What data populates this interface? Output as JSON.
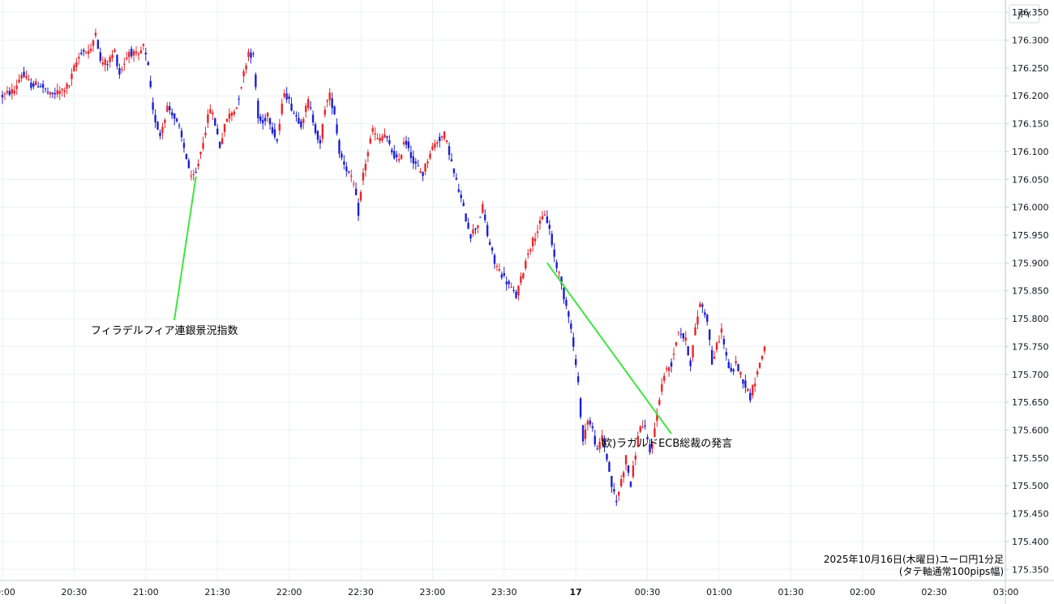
{
  "chart_data": {
    "type": "candlestick",
    "currency_label": "JPY",
    "caption_line1": "2025年10月16日(木曜日)ユーロ円1分足",
    "caption_line2": "(タテ軸通常100pips幅)",
    "y_ticks": [
      "176.350",
      "176.300",
      "176.250",
      "176.200",
      "176.150",
      "176.100",
      "176.050",
      "176.000",
      "175.950",
      "175.900",
      "175.850",
      "175.800",
      "175.750",
      "175.700",
      "175.650",
      "175.600",
      "175.550",
      "175.500",
      "175.450",
      "175.400",
      "175.350"
    ],
    "x_ticks": [
      {
        "label": "20:00",
        "bold": false
      },
      {
        "label": "20:30",
        "bold": false
      },
      {
        "label": "21:00",
        "bold": false
      },
      {
        "label": "21:30",
        "bold": false
      },
      {
        "label": "22:00",
        "bold": false
      },
      {
        "label": "22:30",
        "bold": false
      },
      {
        "label": "23:00",
        "bold": false
      },
      {
        "label": "23:30",
        "bold": false
      },
      {
        "label": "17",
        "bold": true
      },
      {
        "label": "00:30",
        "bold": false
      },
      {
        "label": "01:00",
        "bold": false
      },
      {
        "label": "01:30",
        "bold": false
      },
      {
        "label": "02:00",
        "bold": false
      },
      {
        "label": "02:30",
        "bold": false
      },
      {
        "label": "03:00",
        "bold": false
      }
    ],
    "ylim": [
      175.33,
      176.372
    ],
    "price_path": [
      [
        0,
        176.2
      ],
      [
        5,
        176.21
      ],
      [
        8,
        176.24
      ],
      [
        12,
        176.22
      ],
      [
        16,
        176.22
      ],
      [
        20,
        176.2
      ],
      [
        25,
        176.21
      ],
      [
        28,
        176.22
      ],
      [
        30,
        176.25
      ],
      [
        33,
        176.28
      ],
      [
        37,
        176.28
      ],
      [
        39,
        176.32
      ],
      [
        41,
        176.26
      ],
      [
        44,
        176.26
      ],
      [
        47,
        176.28
      ],
      [
        49,
        176.24
      ],
      [
        53,
        176.28
      ],
      [
        57,
        176.27
      ],
      [
        59,
        176.29
      ],
      [
        61,
        176.25
      ],
      [
        63,
        176.17
      ],
      [
        66,
        176.13
      ],
      [
        69,
        176.18
      ],
      [
        71,
        176.17
      ],
      [
        74,
        176.14
      ],
      [
        77,
        176.09
      ],
      [
        79,
        176.05
      ],
      [
        81,
        176.06
      ],
      [
        84,
        176.12
      ],
      [
        87,
        176.18
      ],
      [
        89,
        176.15
      ],
      [
        91,
        176.11
      ],
      [
        94,
        176.16
      ],
      [
        96,
        176.17
      ],
      [
        98,
        176.18
      ],
      [
        100,
        176.22
      ],
      [
        103,
        176.28
      ],
      [
        105,
        176.27
      ],
      [
        107,
        176.16
      ],
      [
        109,
        176.15
      ],
      [
        111,
        176.17
      ],
      [
        113,
        176.14
      ],
      [
        115,
        176.12
      ],
      [
        118,
        176.21
      ],
      [
        120,
        176.19
      ],
      [
        122,
        176.17
      ],
      [
        125,
        176.15
      ],
      [
        128,
        176.19
      ],
      [
        131,
        176.14
      ],
      [
        133,
        176.11
      ],
      [
        135,
        176.18
      ],
      [
        137,
        176.2
      ],
      [
        139,
        176.17
      ],
      [
        141,
        176.1
      ],
      [
        143,
        176.08
      ],
      [
        145,
        176.06
      ],
      [
        147,
        176.04
      ],
      [
        149,
        175.99
      ],
      [
        151,
        176.06
      ],
      [
        153,
        176.1
      ],
      [
        155,
        176.14
      ],
      [
        157,
        176.12
      ],
      [
        160,
        176.13
      ],
      [
        163,
        176.1
      ],
      [
        166,
        176.08
      ],
      [
        168,
        176.12
      ],
      [
        170,
        176.11
      ],
      [
        172,
        176.08
      ],
      [
        174,
        176.07
      ],
      [
        176,
        176.06
      ],
      [
        179,
        176.1
      ],
      [
        182,
        176.12
      ],
      [
        185,
        176.13
      ],
      [
        187,
        176.1
      ],
      [
        189,
        176.06
      ],
      [
        191,
        176.03
      ],
      [
        194,
        175.98
      ],
      [
        196,
        175.95
      ],
      [
        199,
        175.97
      ],
      [
        201,
        176.0
      ],
      [
        203,
        175.95
      ],
      [
        206,
        175.9
      ],
      [
        209,
        175.88
      ],
      [
        212,
        175.86
      ],
      [
        215,
        175.84
      ],
      [
        217,
        175.87
      ],
      [
        220,
        175.92
      ],
      [
        223,
        175.95
      ],
      [
        225,
        175.97
      ],
      [
        227,
        175.99
      ],
      [
        229,
        175.96
      ],
      [
        231,
        175.91
      ],
      [
        233,
        175.88
      ],
      [
        235,
        175.84
      ],
      [
        237,
        175.81
      ],
      [
        239,
        175.75
      ],
      [
        241,
        175.68
      ],
      [
        243,
        175.58
      ],
      [
        245,
        175.62
      ],
      [
        247,
        175.6
      ],
      [
        249,
        175.56
      ],
      [
        251,
        175.59
      ],
      [
        253,
        175.55
      ],
      [
        255,
        175.5
      ],
      [
        257,
        175.47
      ],
      [
        259,
        175.51
      ],
      [
        261,
        175.55
      ],
      [
        263,
        175.5
      ],
      [
        265,
        175.56
      ],
      [
        267,
        175.61
      ],
      [
        269,
        175.6
      ],
      [
        271,
        175.56
      ],
      [
        273,
        175.6
      ],
      [
        275,
        175.66
      ],
      [
        277,
        175.7
      ],
      [
        280,
        175.72
      ],
      [
        283,
        175.78
      ],
      [
        286,
        175.76
      ],
      [
        288,
        175.72
      ],
      [
        290,
        175.78
      ],
      [
        292,
        175.83
      ],
      [
        295,
        175.8
      ],
      [
        297,
        175.72
      ],
      [
        299,
        175.75
      ],
      [
        301,
        175.78
      ],
      [
        303,
        175.73
      ],
      [
        305,
        175.7
      ],
      [
        307,
        175.72
      ],
      [
        309,
        175.7
      ],
      [
        311,
        175.68
      ],
      [
        313,
        175.66
      ],
      [
        315,
        175.69
      ],
      [
        317,
        175.72
      ],
      [
        319,
        175.75
      ]
    ],
    "annotations": [
      {
        "text": "フィラデルフィア連銀景況指数",
        "minute": 81,
        "price": 176.055
      },
      {
        "text": "欧)ラガルドECB総裁の発言",
        "minute": 228,
        "price": 175.9
      }
    ]
  }
}
